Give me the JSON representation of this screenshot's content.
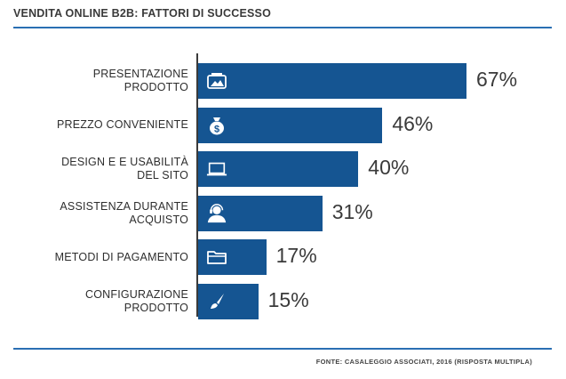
{
  "title": "VENDITA ONLINE B2B: FATTORI DI SUCCESSO",
  "source": "FONTE: CASALEGGIO ASSOCIATI, 2016 (RISPOSTA MULTIPLA)",
  "colors": {
    "bar": "#155592",
    "rule": "#2a6fb3",
    "text": "#3a3a3a"
  },
  "chart_data": {
    "type": "bar",
    "orientation": "horizontal",
    "title": "VENDITA ONLINE B2B: FATTORI DI SUCCESSO",
    "categories": [
      "PRESENTAZIONE\nPRODOTTO",
      "PREZZO CONVENIENTE",
      "DESIGN E E USABILITÀ\nDEL SITO",
      "ASSISTENZA DURANTE\nACQUISTO",
      "METODI DI PAGAMENTO",
      "CONFIGURAZIONE\nPRODOTTO"
    ],
    "values": [
      67,
      46,
      40,
      31,
      17,
      15
    ],
    "value_labels": [
      "67%",
      "46%",
      "40%",
      "31%",
      "17%",
      "15%"
    ],
    "icons": [
      "image-icon",
      "money-bag-icon",
      "laptop-icon",
      "support-agent-icon",
      "folder-icon",
      "brush-icon"
    ],
    "xlim": [
      0,
      100
    ],
    "grid": false,
    "legend": "none"
  }
}
